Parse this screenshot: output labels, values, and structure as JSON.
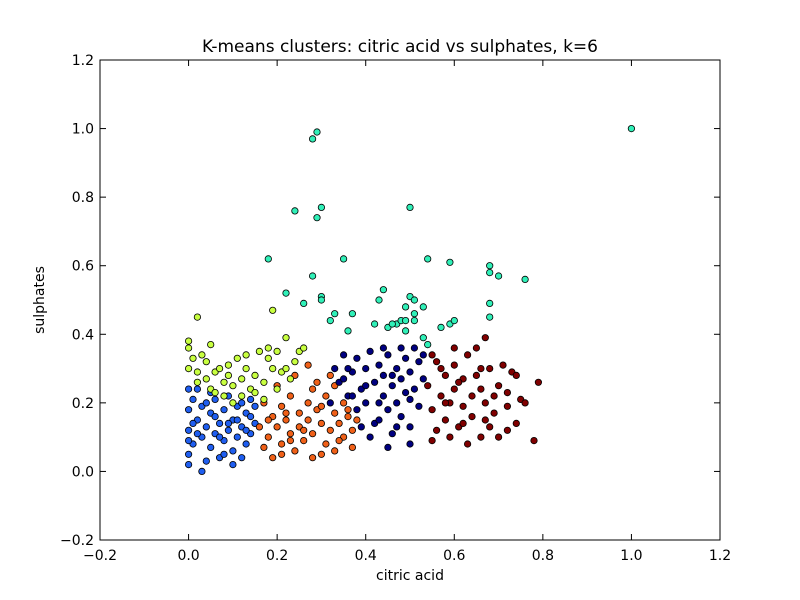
{
  "chart_data": {
    "type": "scatter",
    "title": "K-means clusters: citric acid vs sulphates, k=6",
    "xlabel": "citric acid",
    "ylabel": "sulphates",
    "xlim": [
      -0.2,
      1.2
    ],
    "ylim": [
      -0.2,
      1.2
    ],
    "xticks": [
      "−0.2",
      "0.0",
      "0.2",
      "0.4",
      "0.6",
      "0.8",
      "1.0",
      "1.2"
    ],
    "yticks": [
      "−0.2",
      "0.0",
      "0.2",
      "0.4",
      "0.6",
      "0.8",
      "1.0",
      "1.2"
    ],
    "grid": false,
    "marker_edge_color": "#000000",
    "series": [
      {
        "color": "#1f5ef0",
        "points": [
          [
            0.0,
            0.02
          ],
          [
            0.0,
            0.05
          ],
          [
            0.01,
            0.08
          ],
          [
            0.0,
            0.12
          ],
          [
            0.02,
            0.15
          ],
          [
            0.0,
            0.18
          ],
          [
            0.01,
            0.21
          ],
          [
            0.0,
            0.24
          ],
          [
            0.03,
            0.1
          ],
          [
            0.03,
            0.19
          ],
          [
            0.04,
            0.13
          ],
          [
            0.04,
            0.03
          ],
          [
            0.03,
            0.0
          ],
          [
            0.05,
            0.17
          ],
          [
            0.05,
            0.07
          ],
          [
            0.06,
            0.11
          ],
          [
            0.06,
            0.21
          ],
          [
            0.07,
            0.14
          ],
          [
            0.07,
            0.04
          ],
          [
            0.08,
            0.18
          ],
          [
            0.08,
            0.09
          ],
          [
            0.09,
            0.12
          ],
          [
            0.09,
            0.22
          ],
          [
            0.1,
            0.15
          ],
          [
            0.1,
            0.06
          ],
          [
            0.11,
            0.19
          ],
          [
            0.11,
            0.1
          ],
          [
            0.12,
            0.13
          ],
          [
            0.12,
            0.04
          ],
          [
            0.13,
            0.17
          ],
          [
            0.13,
            0.08
          ],
          [
            0.14,
            0.11
          ],
          [
            0.14,
            0.21
          ],
          [
            0.15,
            0.14
          ],
          [
            0.02,
            0.24
          ],
          [
            0.05,
            0.23
          ],
          [
            0.08,
            0.05
          ],
          [
            0.1,
            0.02
          ],
          [
            0.01,
            0.14
          ],
          [
            0.04,
            0.2
          ],
          [
            0.06,
            0.16
          ],
          [
            0.09,
            0.14
          ],
          [
            0.12,
            0.2
          ],
          [
            0.14,
            0.16
          ],
          [
            0.0,
            0.09
          ],
          [
            0.02,
            0.11
          ],
          [
            0.07,
            0.1
          ],
          [
            0.11,
            0.15
          ],
          [
            0.13,
            0.12
          ],
          [
            0.15,
            0.19
          ]
        ]
      },
      {
        "color": "#f06018",
        "points": [
          [
            0.16,
            0.13
          ],
          [
            0.17,
            0.07
          ],
          [
            0.17,
            0.2
          ],
          [
            0.18,
            0.1
          ],
          [
            0.19,
            0.16
          ],
          [
            0.19,
            0.04
          ],
          [
            0.2,
            0.13
          ],
          [
            0.21,
            0.19
          ],
          [
            0.21,
            0.08
          ],
          [
            0.22,
            0.15
          ],
          [
            0.23,
            0.11
          ],
          [
            0.23,
            0.22
          ],
          [
            0.24,
            0.06
          ],
          [
            0.25,
            0.17
          ],
          [
            0.25,
            0.13
          ],
          [
            0.26,
            0.09
          ],
          [
            0.27,
            0.2
          ],
          [
            0.27,
            0.15
          ],
          [
            0.28,
            0.04
          ],
          [
            0.28,
            0.11
          ],
          [
            0.29,
            0.18
          ],
          [
            0.3,
            0.14
          ],
          [
            0.31,
            0.08
          ],
          [
            0.31,
            0.22
          ],
          [
            0.32,
            0.12
          ],
          [
            0.33,
            0.17
          ],
          [
            0.33,
            0.06
          ],
          [
            0.34,
            0.14
          ],
          [
            0.35,
            0.2
          ],
          [
            0.35,
            0.1
          ],
          [
            0.36,
            0.16
          ],
          [
            0.37,
            0.12
          ],
          [
            0.37,
            0.07
          ],
          [
            0.38,
            0.15
          ],
          [
            0.2,
            0.25
          ],
          [
            0.24,
            0.28
          ],
          [
            0.29,
            0.26
          ],
          [
            0.32,
            0.28
          ],
          [
            0.27,
            0.31
          ],
          [
            0.22,
            0.17
          ],
          [
            0.3,
            0.05
          ],
          [
            0.34,
            0.09
          ],
          [
            0.18,
            0.15
          ],
          [
            0.26,
            0.12
          ],
          [
            0.3,
            0.19
          ],
          [
            0.36,
            0.18
          ],
          [
            0.23,
            0.09
          ],
          [
            0.28,
            0.24
          ],
          [
            0.33,
            0.25
          ],
          [
            0.21,
            0.05
          ]
        ]
      },
      {
        "color": "#000080",
        "points": [
          [
            0.32,
            0.2
          ],
          [
            0.33,
            0.3
          ],
          [
            0.34,
            0.26
          ],
          [
            0.35,
            0.34
          ],
          [
            0.36,
            0.22
          ],
          [
            0.37,
            0.29
          ],
          [
            0.38,
            0.18
          ],
          [
            0.38,
            0.33
          ],
          [
            0.39,
            0.24
          ],
          [
            0.4,
            0.3
          ],
          [
            0.4,
            0.2
          ],
          [
            0.41,
            0.35
          ],
          [
            0.42,
            0.26
          ],
          [
            0.42,
            0.14
          ],
          [
            0.43,
            0.31
          ],
          [
            0.44,
            0.22
          ],
          [
            0.44,
            0.28
          ],
          [
            0.45,
            0.18
          ],
          [
            0.45,
            0.34
          ],
          [
            0.46,
            0.25
          ],
          [
            0.46,
            0.11
          ],
          [
            0.47,
            0.3
          ],
          [
            0.47,
            0.2
          ],
          [
            0.48,
            0.27
          ],
          [
            0.48,
            0.16
          ],
          [
            0.49,
            0.33
          ],
          [
            0.49,
            0.23
          ],
          [
            0.5,
            0.29
          ],
          [
            0.5,
            0.13
          ],
          [
            0.51,
            0.24
          ],
          [
            0.52,
            0.32
          ],
          [
            0.52,
            0.19
          ],
          [
            0.53,
            0.27
          ],
          [
            0.53,
            0.34
          ],
          [
            0.41,
            0.1
          ],
          [
            0.43,
            0.15
          ],
          [
            0.39,
            0.13
          ],
          [
            0.36,
            0.3
          ],
          [
            0.44,
            0.36
          ],
          [
            0.48,
            0.36
          ],
          [
            0.51,
            0.36
          ],
          [
            0.5,
            0.08
          ],
          [
            0.45,
            0.07
          ],
          [
            0.4,
            0.25
          ],
          [
            0.37,
            0.22
          ],
          [
            0.46,
            0.28
          ],
          [
            0.5,
            0.21
          ],
          [
            0.43,
            0.2
          ],
          [
            0.47,
            0.13
          ],
          [
            0.35,
            0.27
          ]
        ]
      },
      {
        "color": "#800000",
        "points": [
          [
            0.54,
            0.25
          ],
          [
            0.55,
            0.18
          ],
          [
            0.56,
            0.32
          ],
          [
            0.56,
            0.12
          ],
          [
            0.57,
            0.22
          ],
          [
            0.58,
            0.28
          ],
          [
            0.58,
            0.15
          ],
          [
            0.59,
            0.2
          ],
          [
            0.6,
            0.31
          ],
          [
            0.6,
            0.24
          ],
          [
            0.61,
            0.13
          ],
          [
            0.62,
            0.27
          ],
          [
            0.62,
            0.19
          ],
          [
            0.63,
            0.34
          ],
          [
            0.64,
            0.22
          ],
          [
            0.64,
            0.16
          ],
          [
            0.65,
            0.28
          ],
          [
            0.66,
            0.1
          ],
          [
            0.66,
            0.24
          ],
          [
            0.67,
            0.2
          ],
          [
            0.67,
            0.39
          ],
          [
            0.68,
            0.3
          ],
          [
            0.68,
            0.13
          ],
          [
            0.69,
            0.17
          ],
          [
            0.7,
            0.25
          ],
          [
            0.71,
            0.31
          ],
          [
            0.72,
            0.19
          ],
          [
            0.72,
            0.23
          ],
          [
            0.73,
            0.29
          ],
          [
            0.74,
            0.14
          ],
          [
            0.75,
            0.21
          ],
          [
            0.76,
            0.2
          ],
          [
            0.78,
            0.09
          ],
          [
            0.79,
            0.26
          ],
          [
            0.59,
            0.1
          ],
          [
            0.63,
            0.08
          ],
          [
            0.55,
            0.09
          ],
          [
            0.6,
            0.36
          ],
          [
            0.65,
            0.36
          ],
          [
            0.7,
            0.1
          ],
          [
            0.57,
            0.3
          ],
          [
            0.61,
            0.26
          ],
          [
            0.66,
            0.3
          ],
          [
            0.69,
            0.22
          ],
          [
            0.72,
            0.12
          ],
          [
            0.58,
            0.2
          ],
          [
            0.62,
            0.14
          ],
          [
            0.67,
            0.15
          ],
          [
            0.55,
            0.34
          ],
          [
            0.74,
            0.28
          ]
        ]
      },
      {
        "color": "#c8ff40",
        "points": [
          [
            0.0,
            0.38
          ],
          [
            0.0,
            0.36
          ],
          [
            0.01,
            0.33
          ],
          [
            0.0,
            0.3
          ],
          [
            0.02,
            0.29
          ],
          [
            0.02,
            0.45
          ],
          [
            0.02,
            0.26
          ],
          [
            0.03,
            0.34
          ],
          [
            0.04,
            0.27
          ],
          [
            0.05,
            0.37
          ],
          [
            0.05,
            0.24
          ],
          [
            0.06,
            0.29
          ],
          [
            0.07,
            0.3
          ],
          [
            0.08,
            0.26
          ],
          [
            0.08,
            0.22
          ],
          [
            0.09,
            0.31
          ],
          [
            0.1,
            0.25
          ],
          [
            0.11,
            0.33
          ],
          [
            0.12,
            0.27
          ],
          [
            0.12,
            0.22
          ],
          [
            0.13,
            0.3
          ],
          [
            0.14,
            0.24
          ],
          [
            0.15,
            0.28
          ],
          [
            0.16,
            0.35
          ],
          [
            0.17,
            0.26
          ],
          [
            0.18,
            0.36
          ],
          [
            0.19,
            0.3
          ],
          [
            0.2,
            0.35
          ],
          [
            0.21,
            0.29
          ],
          [
            0.22,
            0.3
          ],
          [
            0.23,
            0.27
          ],
          [
            0.24,
            0.32
          ],
          [
            0.25,
            0.35
          ],
          [
            0.18,
            0.33
          ],
          [
            0.17,
            0.21
          ],
          [
            0.1,
            0.2
          ],
          [
            0.06,
            0.23
          ],
          [
            0.04,
            0.32
          ],
          [
            0.13,
            0.34
          ],
          [
            0.19,
            0.47
          ],
          [
            0.22,
            0.39
          ],
          [
            0.26,
            0.36
          ],
          [
            0.15,
            0.23
          ],
          [
            0.09,
            0.28
          ],
          [
            0.2,
            0.24
          ]
        ]
      },
      {
        "color": "#30f0b8",
        "points": [
          [
            0.28,
            0.97
          ],
          [
            0.29,
            0.99
          ],
          [
            0.24,
            0.76
          ],
          [
            0.29,
            0.74
          ],
          [
            0.3,
            0.77
          ],
          [
            0.5,
            0.77
          ],
          [
            1.0,
            1.0
          ],
          [
            0.18,
            0.62
          ],
          [
            0.35,
            0.62
          ],
          [
            0.54,
            0.62
          ],
          [
            0.59,
            0.61
          ],
          [
            0.28,
            0.57
          ],
          [
            0.68,
            0.6
          ],
          [
            0.68,
            0.58
          ],
          [
            0.7,
            0.57
          ],
          [
            0.76,
            0.56
          ],
          [
            0.22,
            0.52
          ],
          [
            0.3,
            0.51
          ],
          [
            0.3,
            0.5
          ],
          [
            0.26,
            0.49
          ],
          [
            0.44,
            0.53
          ],
          [
            0.43,
            0.5
          ],
          [
            0.5,
            0.51
          ],
          [
            0.51,
            0.5
          ],
          [
            0.49,
            0.48
          ],
          [
            0.53,
            0.48
          ],
          [
            0.33,
            0.46
          ],
          [
            0.37,
            0.46
          ],
          [
            0.45,
            0.42
          ],
          [
            0.47,
            0.43
          ],
          [
            0.48,
            0.44
          ],
          [
            0.49,
            0.44
          ],
          [
            0.51,
            0.46
          ],
          [
            0.51,
            0.44
          ],
          [
            0.46,
            0.43
          ],
          [
            0.36,
            0.41
          ],
          [
            0.42,
            0.43
          ],
          [
            0.59,
            0.43
          ],
          [
            0.6,
            0.44
          ],
          [
            0.57,
            0.42
          ],
          [
            0.68,
            0.49
          ],
          [
            0.68,
            0.45
          ],
          [
            0.32,
            0.44
          ],
          [
            0.54,
            0.37
          ],
          [
            0.53,
            0.39
          ],
          [
            0.49,
            0.41
          ]
        ]
      }
    ]
  }
}
